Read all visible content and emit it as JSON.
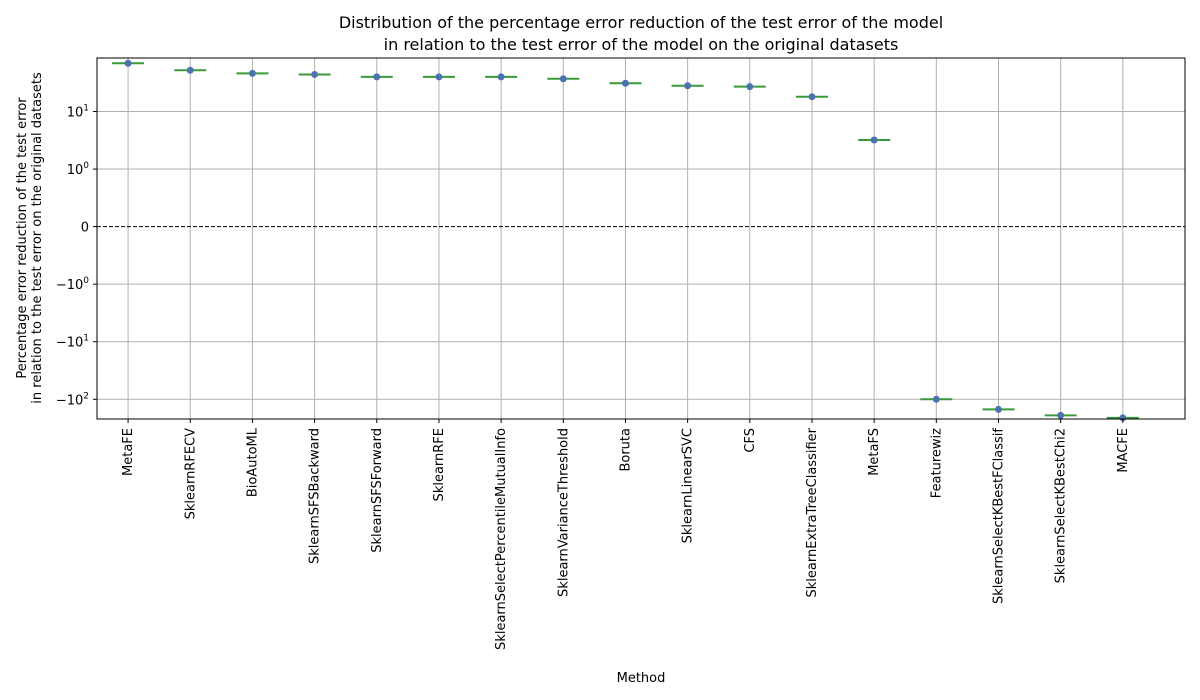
{
  "chart_data": {
    "type": "box",
    "title_lines": [
      "Distribution of the percentage error reduction of the test error of the model",
      "in relation to the test error of the model on the original datasets"
    ],
    "xlabel": "Method",
    "ylabel_lines": [
      "Percentage error reduction of the test error",
      "in relation to the test error on the original datasets"
    ],
    "categories": [
      "MetaFE",
      "SklearnRFECV",
      "BioAutoML",
      "SklearnSFSBackward",
      "SklearnSFSForward",
      "SklearnRFE",
      "SklearnSelectPercentileMutualInfo",
      "SklearnVarianceThreshold",
      "Boruta",
      "SklearnLinearSVC",
      "CFS",
      "SklearnExtraTreeClassifier",
      "MetaFS",
      "Featurewiz",
      "SklearnSelectKBestFClassif",
      "SklearnSelectKBestChi2",
      "MACFE"
    ],
    "values": [
      69,
      52,
      46,
      44,
      40,
      40,
      40,
      37,
      31,
      28,
      27,
      18,
      3.2,
      -100,
      -150,
      -190,
      -210
    ],
    "yscale": "symlog",
    "linthresh": 1,
    "ylim": [
      -220,
      85
    ],
    "yticks": [
      {
        "value": 10,
        "base": "10",
        "exp": "1"
      },
      {
        "value": 1,
        "base": "10",
        "exp": "0"
      },
      {
        "value": 0,
        "base": "0",
        "exp": ""
      },
      {
        "value": -1,
        "base": "−10",
        "exp": "0"
      },
      {
        "value": -10,
        "base": "−10",
        "exp": "1"
      },
      {
        "value": -100,
        "base": "−10",
        "exp": "2"
      }
    ],
    "reference_line": 0,
    "grid": true,
    "colors": {
      "median": "#3a9a3a",
      "mean": "#4c72b0",
      "grid": "#b0b0b0",
      "reference": "#000000"
    }
  }
}
